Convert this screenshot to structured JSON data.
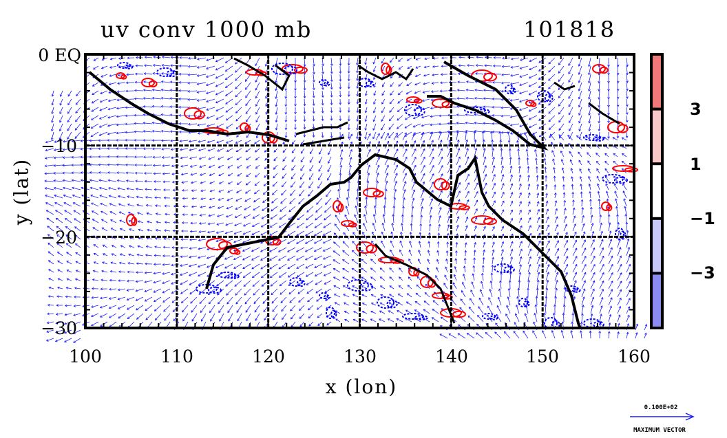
{
  "title": {
    "left": "uv conv 1000 mb",
    "right": "101818"
  },
  "axes": {
    "xlabel": "x (lon)",
    "ylabel": "y (lat)",
    "x_ticks": [
      "100",
      "110",
      "120",
      "130",
      "140",
      "150",
      "160"
    ],
    "y_ticks": [
      "0 EQ",
      "−10",
      "−20",
      "−30"
    ],
    "x_range": [
      100,
      160
    ],
    "y_range": [
      -30,
      0
    ],
    "grid": true
  },
  "colorbar": {
    "tick_labels": [
      "3",
      "1",
      "−1",
      "−3"
    ],
    "levels": [
      -5,
      -3,
      -1,
      1,
      3,
      5
    ],
    "colors": [
      "#8c8cf0",
      "#c8c8f8",
      "#ffffff",
      "#f8c8c8",
      "#f07878"
    ]
  },
  "vector_key": {
    "top_label": "0.100E+02",
    "bottom_label": "MAXIMUM VECTOR"
  },
  "colors": {
    "coastline": "#000000",
    "vectors": "#1e1eff",
    "positive_contour": "#ff0000",
    "negative_contour": "#0000ff"
  }
}
